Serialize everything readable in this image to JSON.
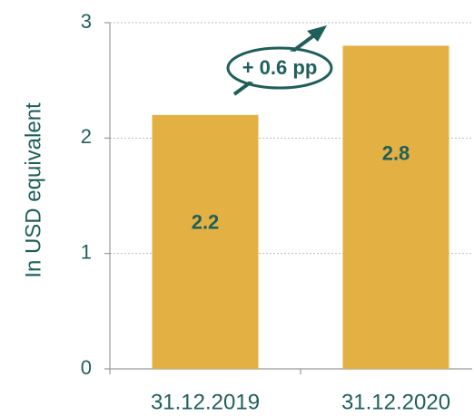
{
  "chart_data": {
    "type": "bar",
    "y_label": "In USD equivalent",
    "annotation": "+ 0.6 pp",
    "categories": [
      "31.12.2019",
      "31.12.2020"
    ],
    "values": [
      2.2,
      2.8
    ],
    "color": "#e3b043",
    "ylim": [
      0,
      3
    ],
    "yticks": [
      0,
      1,
      2,
      3
    ],
    "grid": true
  }
}
